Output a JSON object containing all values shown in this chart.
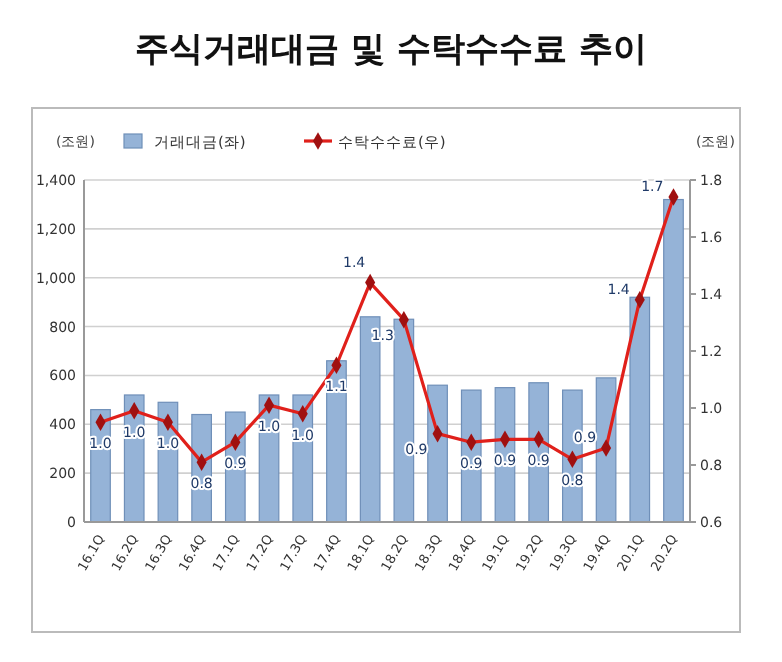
{
  "chart_data": {
    "type": "bar",
    "title": "주식거래대금 및 수탁수수료 추이",
    "ylabel": "(조원)",
    "y2label": "(조원)",
    "categories": [
      "16.1Q",
      "16.2Q",
      "16.3Q",
      "16.4Q",
      "17.1Q",
      "17.2Q",
      "17.3Q",
      "17.4Q",
      "18.1Q",
      "18.2Q",
      "18.3Q",
      "18.4Q",
      "19.1Q",
      "19.2Q",
      "19.3Q",
      "19.4Q",
      "20.1Q",
      "20.2Q"
    ],
    "series": [
      {
        "name": "거래대금(좌)",
        "color": "#95b3d7",
        "values": [
          460,
          520,
          490,
          440,
          450,
          520,
          520,
          660,
          840,
          830,
          560,
          540,
          550,
          570,
          540,
          590,
          920,
          1320
        ]
      },
      {
        "name": "수탁수수료(우)",
        "type": "line",
        "axis": "y2",
        "color": "#e0201b",
        "marker": "diamond",
        "values": [
          0.95,
          0.99,
          0.95,
          0.81,
          0.88,
          1.01,
          0.98,
          1.15,
          1.44,
          1.31,
          0.91,
          0.88,
          0.89,
          0.89,
          0.82,
          0.86,
          1.38,
          1.74
        ],
        "value_labels": [
          "1.0",
          "1.0",
          "1.0",
          "0.8",
          "0.9",
          "1.0",
          "1.0",
          "1.1",
          "1.4",
          "1.3",
          "0.9",
          "0.9",
          "0.9",
          "0.9",
          "0.8",
          "0.9",
          "1.4",
          "1.7"
        ]
      }
    ],
    "ylim": [
      0,
      1400
    ],
    "yticks": [
      0,
      {
        "value": 200,
        "label": "200"
      },
      {
        "value": 400,
        "label": "400"
      },
      {
        "value": 600,
        "label": "600"
      },
      {
        "value": 800,
        "label": "800"
      },
      {
        "value": 1000,
        "label": "1,000"
      },
      {
        "value": 1200,
        "label": "1,200"
      },
      {
        "value": 1400,
        "label": "1,400"
      }
    ],
    "y2lim": [
      0.6,
      1.8
    ],
    "y2ticks": [
      {
        "value": 0.6,
        "label": "0.6"
      },
      {
        "value": 0.8,
        "label": "0.8"
      },
      {
        "value": 1.0,
        "label": "1.0"
      },
      {
        "value": 1.2,
        "label": "1.2"
      },
      {
        "value": 1.4,
        "label": "1.4"
      },
      {
        "value": 1.6,
        "label": "1.6"
      },
      {
        "value": 1.8,
        "label": "1.8"
      }
    ],
    "grid": "y",
    "legend": "top left"
  }
}
